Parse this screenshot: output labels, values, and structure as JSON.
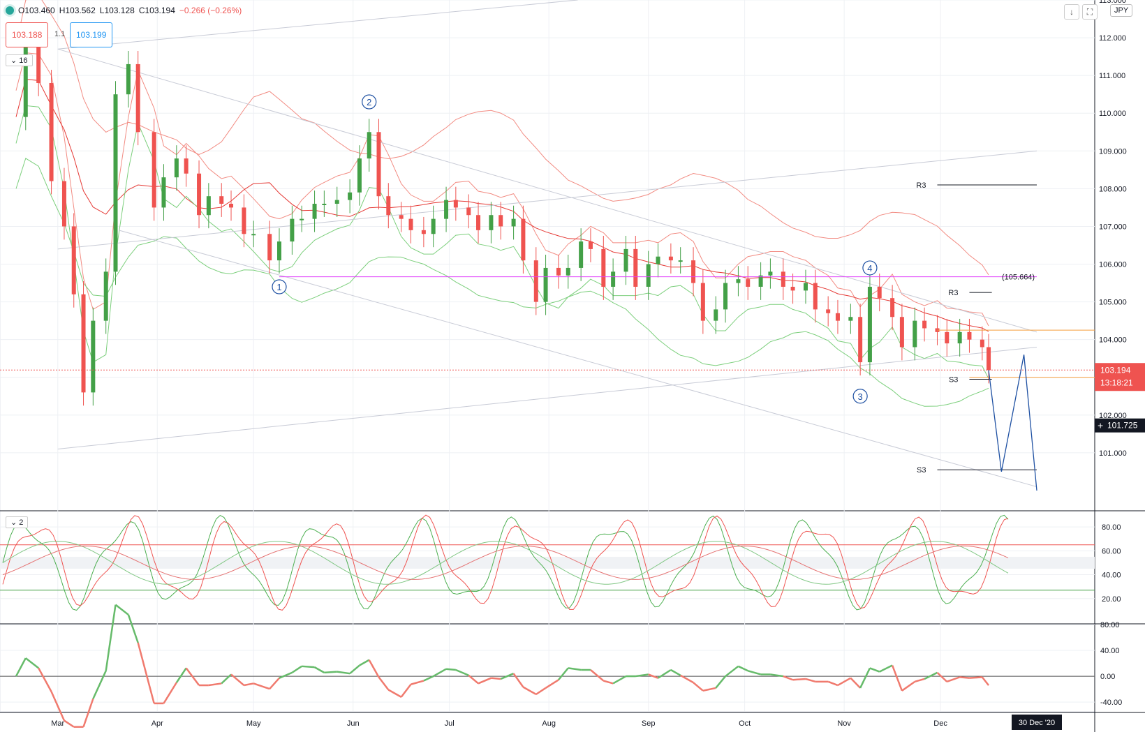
{
  "header": {
    "ohlc_open": "O103.460",
    "ohlc_high": "H103.562",
    "ohlc_low": "L103.128",
    "ohlc_close": "C103.194",
    "change": "−0.266 (−0.26%)",
    "sell_price": "103.188",
    "spread": "1.1",
    "buy_price": "103.199",
    "indicator_badge": "16",
    "oscillator_badge": "2",
    "currency": "JPY",
    "download_icon": "down-arrow-icon",
    "fullscreen_icon": "fullscreen-icon"
  },
  "colors": {
    "up": "#43a047",
    "down": "#ef5350",
    "band_red": "#f28b82",
    "band_green": "#7ccf7c",
    "wave_label": "#1e50a2",
    "forecast": "#1e50a2",
    "level_orange": "#f59e3a",
    "level_magenta": "#e040fb",
    "trendline": "#c8cbd6"
  },
  "chart_data": [
    {
      "type": "line",
      "name": "price",
      "instrument_quote": "JPY",
      "ylim": [
        99.5,
        113.0
      ],
      "yticks": [
        101.0,
        102.0,
        103.0,
        104.0,
        105.0,
        106.0,
        107.0,
        108.0,
        109.0,
        110.0,
        111.0,
        112.0,
        113.0
      ],
      "xaxis_labels": [
        "Mar",
        "Apr",
        "May",
        "Jun",
        "Jul",
        "Aug",
        "Sep",
        "Oct",
        "Nov",
        "Dec"
      ],
      "xaxis_highlight": "30 Dec '20",
      "last_price": "103.194",
      "countdown": "13:18:21",
      "cursor_price": "101.725",
      "series": [
        {
          "kind": "candlestick_trend",
          "points": [
            [
              "2020-02-17",
              109.9
            ],
            [
              "2020-02-20",
              111.9
            ],
            [
              "2020-02-24",
              110.8
            ],
            [
              "2020-02-28",
              108.2
            ],
            [
              "2020-03-03",
              107.0
            ],
            [
              "2020-03-06",
              105.2
            ],
            [
              "2020-03-09",
              102.6
            ],
            [
              "2020-03-12",
              104.5
            ],
            [
              "2020-03-16",
              105.8
            ],
            [
              "2020-03-19",
              110.5
            ],
            [
              "2020-03-23",
              111.3
            ],
            [
              "2020-03-26",
              109.5
            ],
            [
              "2020-03-31",
              107.5
            ],
            [
              "2020-04-03",
              108.3
            ],
            [
              "2020-04-07",
              108.8
            ],
            [
              "2020-04-10",
              108.4
            ],
            [
              "2020-04-14",
              107.3
            ],
            [
              "2020-04-17",
              107.8
            ],
            [
              "2020-04-21",
              107.6
            ],
            [
              "2020-04-24",
              107.5
            ],
            [
              "2020-04-28",
              106.8
            ],
            [
              "2020-05-01",
              106.8
            ],
            [
              "2020-05-06",
              106.1
            ],
            [
              "2020-05-09",
              106.6
            ],
            [
              "2020-05-13",
              107.2
            ],
            [
              "2020-05-16",
              107.2
            ],
            [
              "2020-05-20",
              107.6
            ],
            [
              "2020-05-23",
              107.6
            ],
            [
              "2020-05-27",
              107.7
            ],
            [
              "2020-05-31",
              107.9
            ],
            [
              "2020-06-03",
              108.8
            ],
            [
              "2020-06-06",
              109.5
            ],
            [
              "2020-06-09",
              107.8
            ],
            [
              "2020-06-12",
              107.3
            ],
            [
              "2020-06-16",
              107.2
            ],
            [
              "2020-06-19",
              106.9
            ],
            [
              "2020-06-23",
              106.8
            ],
            [
              "2020-06-26",
              107.2
            ],
            [
              "2020-06-30",
              107.7
            ],
            [
              "2020-07-03",
              107.5
            ],
            [
              "2020-07-07",
              107.3
            ],
            [
              "2020-07-10",
              106.9
            ],
            [
              "2020-07-14",
              107.3
            ],
            [
              "2020-07-17",
              107.0
            ],
            [
              "2020-07-21",
              107.2
            ],
            [
              "2020-07-24",
              106.1
            ],
            [
              "2020-07-28",
              105.0
            ],
            [
              "2020-07-31",
              105.9
            ],
            [
              "2020-08-04",
              105.7
            ],
            [
              "2020-08-07",
              105.9
            ],
            [
              "2020-08-11",
              106.6
            ],
            [
              "2020-08-14",
              106.4
            ],
            [
              "2020-08-18",
              105.4
            ],
            [
              "2020-08-21",
              105.8
            ],
            [
              "2020-08-25",
              106.4
            ],
            [
              "2020-08-28",
              105.4
            ],
            [
              "2020-09-01",
              106.0
            ],
            [
              "2020-09-04",
              106.2
            ],
            [
              "2020-09-08",
              106.1
            ],
            [
              "2020-09-11",
              106.1
            ],
            [
              "2020-09-15",
              105.5
            ],
            [
              "2020-09-18",
              104.5
            ],
            [
              "2020-09-22",
              104.8
            ],
            [
              "2020-09-25",
              105.5
            ],
            [
              "2020-09-29",
              105.6
            ],
            [
              "2020-10-02",
              105.4
            ],
            [
              "2020-10-06",
              105.7
            ],
            [
              "2020-10-09",
              105.8
            ],
            [
              "2020-10-13",
              105.4
            ],
            [
              "2020-10-16",
              105.3
            ],
            [
              "2020-10-20",
              105.5
            ],
            [
              "2020-10-23",
              104.8
            ],
            [
              "2020-10-27",
              104.7
            ],
            [
              "2020-10-30",
              104.5
            ],
            [
              "2020-11-03",
              104.6
            ],
            [
              "2020-11-06",
              103.4
            ],
            [
              "2020-11-09",
              105.4
            ],
            [
              "2020-11-12",
              105.1
            ],
            [
              "2020-11-16",
              104.6
            ],
            [
              "2020-11-19",
              103.8
            ],
            [
              "2020-11-23",
              104.5
            ],
            [
              "2020-11-26",
              104.3
            ],
            [
              "2020-11-30",
              104.2
            ],
            [
              "2020-12-03",
              103.9
            ],
            [
              "2020-12-07",
              104.2
            ],
            [
              "2020-12-10",
              104.0
            ],
            [
              "2020-12-14",
              103.8
            ],
            [
              "2020-12-16",
              103.19
            ]
          ]
        },
        {
          "kind": "forecast_path",
          "points": [
            [
              "2020-12-16",
              103.19
            ],
            [
              "2020-12-20",
              100.5
            ],
            [
              "2020-12-27",
              103.6
            ],
            [
              "2020-12-31",
              100.0
            ]
          ]
        }
      ],
      "wave_labels": [
        {
          "text": "1",
          "date": "2020-05-09",
          "price": 105.4
        },
        {
          "text": "2",
          "date": "2020-06-06",
          "price": 110.3
        },
        {
          "text": "3",
          "date": "2020-11-06",
          "price": 102.5
        },
        {
          "text": "4",
          "date": "2020-11-09",
          "price": 105.9
        }
      ],
      "levels": [
        {
          "label": "R3",
          "price": 108.1,
          "from": "2020-11-30",
          "to": "2020-12-31"
        },
        {
          "label": "R3",
          "price": 105.25,
          "from": "2020-12-10",
          "to": "2020-12-17"
        },
        {
          "label": "S3",
          "price": 102.95,
          "from": "2020-12-10",
          "to": "2020-12-17"
        },
        {
          "label": "S3",
          "price": 100.55,
          "from": "2020-11-30",
          "to": "2020-12-31"
        },
        {
          "label": "(105.664)",
          "price": 105.664,
          "from": "2020-05-09",
          "to": "2020-12-31"
        }
      ]
    },
    {
      "type": "line",
      "name": "stochastic",
      "ylim": [
        0,
        90
      ],
      "yticks": [
        20.0,
        40.0,
        60.0,
        80.0
      ],
      "bands": [
        27,
        45,
        55,
        65
      ]
    },
    {
      "type": "line",
      "name": "momentum",
      "ylim": [
        -55,
        80
      ],
      "yticks": [
        -40.0,
        0.0,
        40.0,
        80.0
      ]
    }
  ]
}
